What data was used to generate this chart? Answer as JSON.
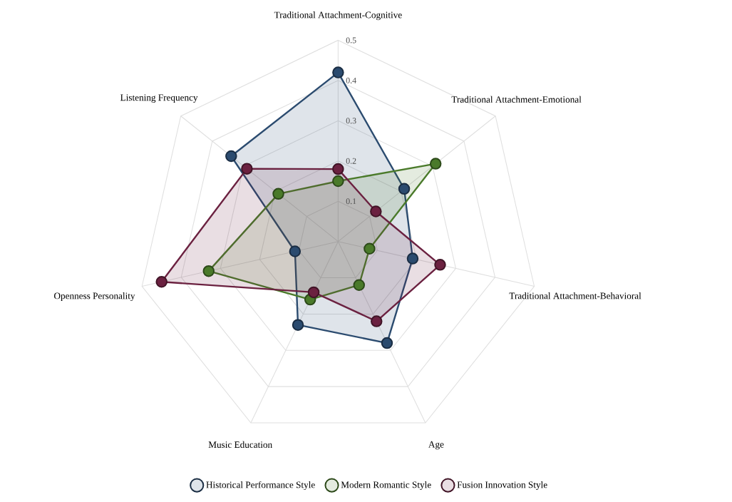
{
  "chart_data": {
    "type": "radar",
    "categories": [
      "Traditional Attachment-Cognitive",
      "Traditional Attachment-Emotional",
      "Traditional Attachment-Behavioral",
      "Age",
      "Music Education",
      "Openness Personality",
      "Listening Frequency"
    ],
    "series": [
      {
        "name": "Historical Performance Style",
        "color": "#2b4b6f",
        "values": [
          0.42,
          0.21,
          0.19,
          0.28,
          0.23,
          0.11,
          0.34
        ]
      },
      {
        "name": "Modern Romantic Style",
        "color": "#4a7a2a",
        "values": [
          0.15,
          0.31,
          0.08,
          0.12,
          0.16,
          0.33,
          0.19
        ]
      },
      {
        "name": "Fusion Innovation Style",
        "color": "#6b2140",
        "values": [
          0.18,
          0.12,
          0.26,
          0.22,
          0.14,
          0.45,
          0.29
        ]
      }
    ],
    "ylim": [
      0,
      0.5
    ],
    "yticks": [
      0.1,
      0.2,
      0.3,
      0.4,
      0.5
    ],
    "grid": true,
    "legend": "bottom",
    "marker": "circle",
    "line_style": "solid"
  }
}
